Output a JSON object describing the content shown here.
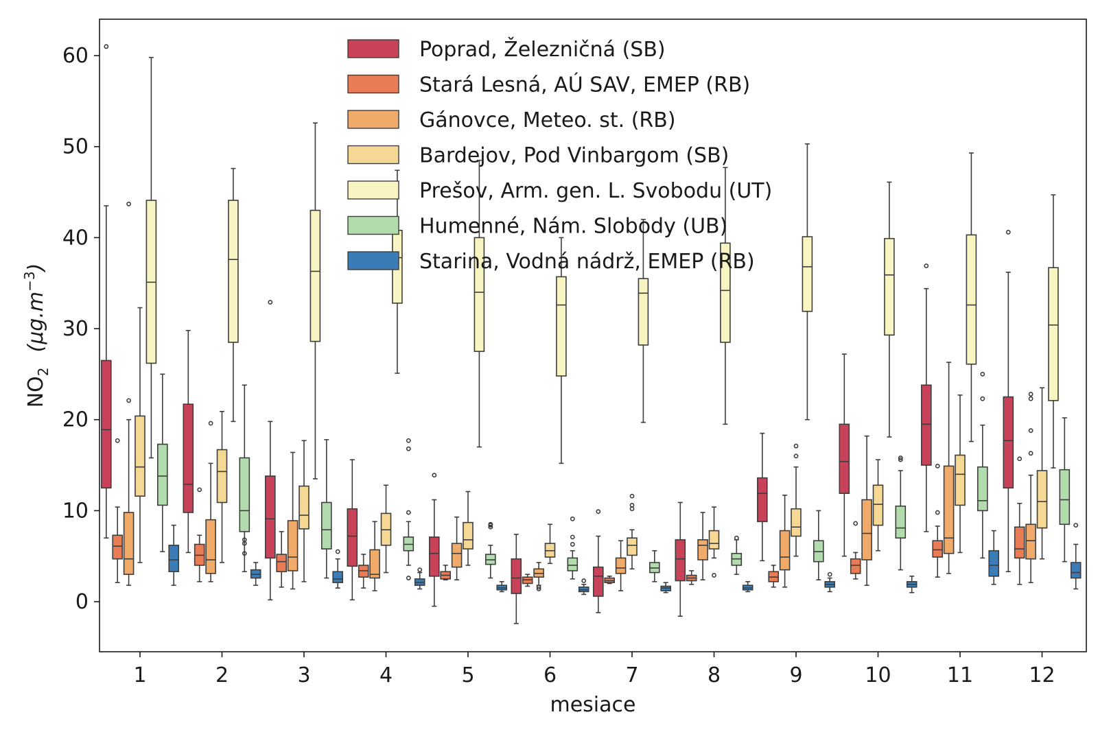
{
  "chart_data": {
    "type": "boxplot",
    "xlabel": "mesiace",
    "ylabel_main": "NO",
    "ylabel_sub": "2",
    "ylabel_unit": "(μg.m",
    "ylabel_unit_sup": "−3",
    "ylabel_unit_close": ")",
    "ylim": [
      -5.5,
      64
    ],
    "yticks": [
      0,
      10,
      20,
      30,
      40,
      50,
      60
    ],
    "categories": [
      "1",
      "2",
      "3",
      "4",
      "5",
      "6",
      "7",
      "8",
      "9",
      "10",
      "11",
      "12"
    ],
    "legend_position": "top-center",
    "series": [
      {
        "name": "Poprad, Železničná (SB)",
        "color": "#c8435a",
        "boxes": [
          {
            "low": 7.0,
            "q1": 12.5,
            "med": 18.9,
            "q3": 26.5,
            "high": 43.5,
            "outliers": [
              61.0
            ]
          },
          {
            "low": 5.4,
            "q1": 9.8,
            "med": 12.9,
            "q3": 21.7,
            "high": 29.8,
            "outliers": []
          },
          {
            "low": 0.2,
            "q1": 4.8,
            "med": 9.1,
            "q3": 13.8,
            "high": 19.8,
            "outliers": [
              32.9
            ]
          },
          {
            "low": 0.2,
            "q1": 3.9,
            "med": 7.2,
            "q3": 10.2,
            "high": 15.6,
            "outliers": []
          },
          {
            "low": -0.5,
            "q1": 2.8,
            "med": 5.3,
            "q3": 7.1,
            "high": 11.2,
            "outliers": [
              13.9
            ]
          },
          {
            "low": -2.4,
            "q1": 0.9,
            "med": 2.6,
            "q3": 4.7,
            "high": 7.4,
            "outliers": []
          },
          {
            "low": -1.2,
            "q1": 0.6,
            "med": 2.8,
            "q3": 3.8,
            "high": 7.2,
            "outliers": [
              9.9
            ]
          },
          {
            "low": -1.6,
            "q1": 2.3,
            "med": 4.7,
            "q3": 6.8,
            "high": 10.9,
            "outliers": []
          },
          {
            "low": 4.5,
            "q1": 8.8,
            "med": 11.9,
            "q3": 13.6,
            "high": 18.5,
            "outliers": []
          },
          {
            "low": 5.0,
            "q1": 11.9,
            "med": 15.4,
            "q3": 19.5,
            "high": 27.2,
            "outliers": []
          },
          {
            "low": 7.7,
            "q1": 15.0,
            "med": 19.5,
            "q3": 23.8,
            "high": 34.4,
            "outliers": [
              36.9
            ]
          },
          {
            "low": 3.3,
            "q1": 12.5,
            "med": 17.7,
            "q3": 22.5,
            "high": 36.2,
            "outliers": [
              40.6
            ]
          }
        ]
      },
      {
        "name": "Stará Lesná, AÚ SAV, EMEP (RB)",
        "color": "#e97c55",
        "boxes": [
          {
            "low": 2.1,
            "q1": 4.7,
            "med": 6.1,
            "q3": 7.3,
            "high": 10.4,
            "outliers": [
              17.7
            ]
          },
          {
            "low": 2.2,
            "q1": 4.0,
            "med": 5.1,
            "q3": 6.3,
            "high": 7.3,
            "outliers": [
              12.3
            ]
          },
          {
            "low": 1.6,
            "q1": 3.3,
            "med": 4.4,
            "q3": 5.2,
            "high": 7.7,
            "outliers": []
          },
          {
            "low": 1.5,
            "q1": 2.7,
            "med": 3.4,
            "q3": 4.0,
            "high": 5.2,
            "outliers": []
          },
          {
            "low": 2.4,
            "q1": 2.5,
            "med": 2.9,
            "q3": 3.3,
            "high": 4.0,
            "outliers": []
          },
          {
            "low": 1.7,
            "q1": 2.0,
            "med": 2.4,
            "q3": 2.7,
            "high": 3.0,
            "outliers": []
          },
          {
            "low": 2.0,
            "q1": 2.1,
            "med": 2.3,
            "q3": 2.6,
            "high": 2.8,
            "outliers": []
          },
          {
            "low": 1.9,
            "q1": 2.3,
            "med": 2.6,
            "q3": 2.9,
            "high": 3.4,
            "outliers": []
          },
          {
            "low": 1.6,
            "q1": 2.2,
            "med": 2.7,
            "q3": 3.3,
            "high": 4.0,
            "outliers": []
          },
          {
            "low": 2.5,
            "q1": 3.1,
            "med": 4.0,
            "q3": 4.7,
            "high": 5.4,
            "outliers": [
              8.6
            ]
          },
          {
            "low": 2.7,
            "q1": 4.9,
            "med": 5.7,
            "q3": 6.7,
            "high": 8.3,
            "outliers": [
              9.8,
              14.9
            ]
          },
          {
            "low": 1.9,
            "q1": 4.8,
            "med": 5.8,
            "q3": 8.2,
            "high": 10.8,
            "outliers": [
              15.7
            ]
          }
        ]
      },
      {
        "name": "Gánovce, Meteo. st. (RB)",
        "color": "#f0aa69",
        "boxes": [
          {
            "low": 1.8,
            "q1": 3.0,
            "med": 4.7,
            "q3": 9.8,
            "high": 20.0,
            "outliers": [
              22.1,
              43.7
            ]
          },
          {
            "low": 2.2,
            "q1": 3.1,
            "med": 4.6,
            "q3": 9.0,
            "high": 15.2,
            "outliers": [
              19.6
            ]
          },
          {
            "low": 1.4,
            "q1": 3.4,
            "med": 4.9,
            "q3": 8.9,
            "high": 16.4,
            "outliers": []
          },
          {
            "low": 1.2,
            "q1": 2.6,
            "med": 3.0,
            "q3": 5.7,
            "high": 8.8,
            "outliers": []
          },
          {
            "low": 2.4,
            "q1": 3.8,
            "med": 5.3,
            "q3": 6.4,
            "high": 9.3,
            "outliers": []
          },
          {
            "low": 1.8,
            "q1": 2.7,
            "med": 3.1,
            "q3": 3.6,
            "high": 4.3,
            "outliers": [
              1.4,
              1.6
            ]
          },
          {
            "low": 1.2,
            "q1": 3.1,
            "med": 3.7,
            "q3": 4.8,
            "high": 6.7,
            "outliers": []
          },
          {
            "low": 2.4,
            "q1": 4.6,
            "med": 6.2,
            "q3": 6.8,
            "high": 9.8,
            "outliers": []
          },
          {
            "low": 1.6,
            "q1": 3.5,
            "med": 4.9,
            "q3": 7.8,
            "high": 11.7,
            "outliers": []
          },
          {
            "low": 1.8,
            "q1": 4.6,
            "med": 7.5,
            "q3": 11.2,
            "high": 18.2,
            "outliers": []
          },
          {
            "low": 3.1,
            "q1": 5.3,
            "med": 7.0,
            "q3": 14.9,
            "high": 26.3,
            "outliers": []
          },
          {
            "low": 2.1,
            "q1": 4.7,
            "med": 6.7,
            "q3": 8.5,
            "high": 13.9,
            "outliers": [
              16.3,
              18.8,
              22.3,
              22.8
            ]
          }
        ]
      },
      {
        "name": "Bardejov, Pod Vinbargom (SB)",
        "color": "#f5d894",
        "boxes": [
          {
            "low": 4.3,
            "q1": 11.6,
            "med": 14.8,
            "q3": 20.4,
            "high": 32.3,
            "outliers": []
          },
          {
            "low": 4.3,
            "q1": 10.9,
            "med": 14.3,
            "q3": 16.7,
            "high": 20.9,
            "outliers": []
          },
          {
            "low": 2.2,
            "q1": 8.0,
            "med": 9.5,
            "q3": 12.7,
            "high": 17.7,
            "outliers": []
          },
          {
            "low": 3.2,
            "q1": 6.2,
            "med": 7.9,
            "q3": 9.7,
            "high": 12.8,
            "outliers": []
          },
          {
            "low": 4.0,
            "q1": 5.8,
            "med": 6.8,
            "q3": 8.7,
            "high": 12.1,
            "outliers": []
          },
          {
            "low": 4.2,
            "q1": 4.9,
            "med": 5.6,
            "q3": 6.4,
            "high": 8.5,
            "outliers": []
          },
          {
            "low": 3.6,
            "q1": 5.1,
            "med": 6.2,
            "q3": 7.0,
            "high": 7.9,
            "outliers": [
              10.2,
              10.6,
              11.6
            ]
          },
          {
            "low": 4.8,
            "q1": 5.8,
            "med": 6.4,
            "q3": 7.8,
            "high": 10.4,
            "outliers": [
              2.9
            ]
          },
          {
            "low": 5.0,
            "q1": 7.2,
            "med": 8.2,
            "q3": 10.2,
            "high": 14.8,
            "outliers": [
              16.0,
              17.1
            ]
          },
          {
            "low": 5.6,
            "q1": 8.4,
            "med": 10.7,
            "q3": 12.8,
            "high": 15.6,
            "outliers": []
          },
          {
            "low": 5.4,
            "q1": 10.6,
            "med": 14.0,
            "q3": 16.1,
            "high": 22.7,
            "outliers": []
          },
          {
            "low": 4.7,
            "q1": 8.1,
            "med": 11.0,
            "q3": 14.4,
            "high": 23.5,
            "outliers": []
          }
        ]
      },
      {
        "name": "Prešov, Arm. gen. L. Svobodu (UT)",
        "color": "#f8f5c2",
        "boxes": [
          {
            "low": 15.8,
            "q1": 26.2,
            "med": 35.1,
            "q3": 44.1,
            "high": 59.8,
            "outliers": []
          },
          {
            "low": 19.8,
            "q1": 28.5,
            "med": 37.6,
            "q3": 44.1,
            "high": 47.6,
            "outliers": []
          },
          {
            "low": 13.5,
            "q1": 28.6,
            "med": 36.3,
            "q3": 43.0,
            "high": 52.6,
            "outliers": []
          },
          {
            "low": 25.1,
            "q1": 32.8,
            "med": 37.8,
            "q3": 40.8,
            "high": 47.4,
            "outliers": []
          },
          {
            "low": 17.0,
            "q1": 27.5,
            "med": 34.0,
            "q3": 40.0,
            "high": 48.5,
            "outliers": []
          },
          {
            "low": 15.2,
            "q1": 24.8,
            "med": 32.6,
            "q3": 35.7,
            "high": 40.0,
            "outliers": []
          },
          {
            "low": 19.7,
            "q1": 28.2,
            "med": 33.9,
            "q3": 35.5,
            "high": 42.0,
            "outliers": []
          },
          {
            "low": 19.5,
            "q1": 28.5,
            "med": 34.2,
            "q3": 39.4,
            "high": 47.7,
            "outliers": []
          },
          {
            "low": 20.0,
            "q1": 31.9,
            "med": 36.8,
            "q3": 40.1,
            "high": 50.3,
            "outliers": []
          },
          {
            "low": 18.1,
            "q1": 29.3,
            "med": 35.9,
            "q3": 39.9,
            "high": 46.1,
            "outliers": []
          },
          {
            "low": 17.6,
            "q1": 26.1,
            "med": 32.6,
            "q3": 40.3,
            "high": 49.3,
            "outliers": []
          },
          {
            "low": 14.7,
            "q1": 22.1,
            "med": 30.4,
            "q3": 36.7,
            "high": 44.7,
            "outliers": []
          }
        ]
      },
      {
        "name": "Humenné, Nám. Slobody (UB)",
        "color": "#b3dcae",
        "boxes": [
          {
            "low": 5.5,
            "q1": 10.6,
            "med": 13.8,
            "q3": 17.3,
            "high": 25.0,
            "outliers": []
          },
          {
            "low": 3.3,
            "q1": 7.7,
            "med": 10.0,
            "q3": 15.8,
            "high": 23.8,
            "outliers": [
              5.3,
              6.4,
              6.8
            ]
          },
          {
            "low": 2.6,
            "q1": 5.8,
            "med": 7.9,
            "q3": 10.9,
            "high": 17.8,
            "outliers": []
          },
          {
            "low": 4.0,
            "q1": 5.6,
            "med": 6.3,
            "q3": 7.1,
            "high": 8.8,
            "outliers": [
              2.6,
              9.8,
              16.8,
              17.7
            ]
          },
          {
            "low": 2.6,
            "q1": 4.1,
            "med": 4.6,
            "q3": 5.2,
            "high": 6.2,
            "outliers": [
              8.2,
              8.4,
              8.5
            ]
          },
          {
            "low": 2.5,
            "q1": 3.4,
            "med": 4.0,
            "q3": 4.8,
            "high": 5.6,
            "outliers": [
              6.3,
              7.1,
              9.1
            ]
          },
          {
            "low": 2.2,
            "q1": 3.2,
            "med": 3.7,
            "q3": 4.3,
            "high": 5.6,
            "outliers": []
          },
          {
            "low": 3.0,
            "q1": 4.0,
            "med": 4.7,
            "q3": 5.3,
            "high": 6.8,
            "outliers": [
              7.0
            ]
          },
          {
            "low": 2.4,
            "q1": 4.4,
            "med": 5.5,
            "q3": 6.7,
            "high": 10.0,
            "outliers": []
          },
          {
            "low": 3.5,
            "q1": 7.0,
            "med": 8.1,
            "q3": 10.5,
            "high": 14.4,
            "outliers": [
              15.6,
              15.8
            ]
          },
          {
            "low": 4.8,
            "q1": 10.0,
            "med": 11.1,
            "q3": 14.8,
            "high": 19.4,
            "outliers": [
              22.3,
              25.0
            ]
          },
          {
            "low": 4.4,
            "q1": 8.5,
            "med": 11.2,
            "q3": 14.5,
            "high": 20.2,
            "outliers": []
          }
        ]
      },
      {
        "name": "Starina, Vodná nádrž, EMEP (RB)",
        "color": "#3a7db6",
        "boxes": [
          {
            "low": 1.8,
            "q1": 3.3,
            "med": 4.6,
            "q3": 6.2,
            "high": 8.4,
            "outliers": []
          },
          {
            "low": 1.8,
            "q1": 2.6,
            "med": 3.0,
            "q3": 3.5,
            "high": 4.3,
            "outliers": []
          },
          {
            "low": 1.5,
            "q1": 2.1,
            "med": 2.5,
            "q3": 3.3,
            "high": 4.7,
            "outliers": [
              5.5
            ]
          },
          {
            "low": 1.4,
            "q1": 1.8,
            "med": 2.1,
            "q3": 2.5,
            "high": 3.2,
            "outliers": [
              3.5
            ]
          },
          {
            "low": 1.1,
            "q1": 1.3,
            "med": 1.5,
            "q3": 1.8,
            "high": 2.2,
            "outliers": []
          },
          {
            "low": 0.8,
            "q1": 1.1,
            "med": 1.3,
            "q3": 1.6,
            "high": 1.9,
            "outliers": [
              2.3
            ]
          },
          {
            "low": 1.0,
            "q1": 1.2,
            "med": 1.5,
            "q3": 1.7,
            "high": 2.1,
            "outliers": []
          },
          {
            "low": 1.1,
            "q1": 1.3,
            "med": 1.5,
            "q3": 1.8,
            "high": 2.2,
            "outliers": []
          },
          {
            "low": 1.1,
            "q1": 1.6,
            "med": 1.9,
            "q3": 2.2,
            "high": 2.6,
            "outliers": [
              3.0
            ]
          },
          {
            "low": 1.0,
            "q1": 1.6,
            "med": 1.9,
            "q3": 2.2,
            "high": 2.8,
            "outliers": []
          },
          {
            "low": 1.9,
            "q1": 2.8,
            "med": 4.0,
            "q3": 5.6,
            "high": 7.8,
            "outliers": []
          },
          {
            "low": 1.4,
            "q1": 2.6,
            "med": 3.2,
            "q3": 4.3,
            "high": 6.3,
            "outliers": [
              8.4
            ]
          }
        ]
      }
    ]
  }
}
